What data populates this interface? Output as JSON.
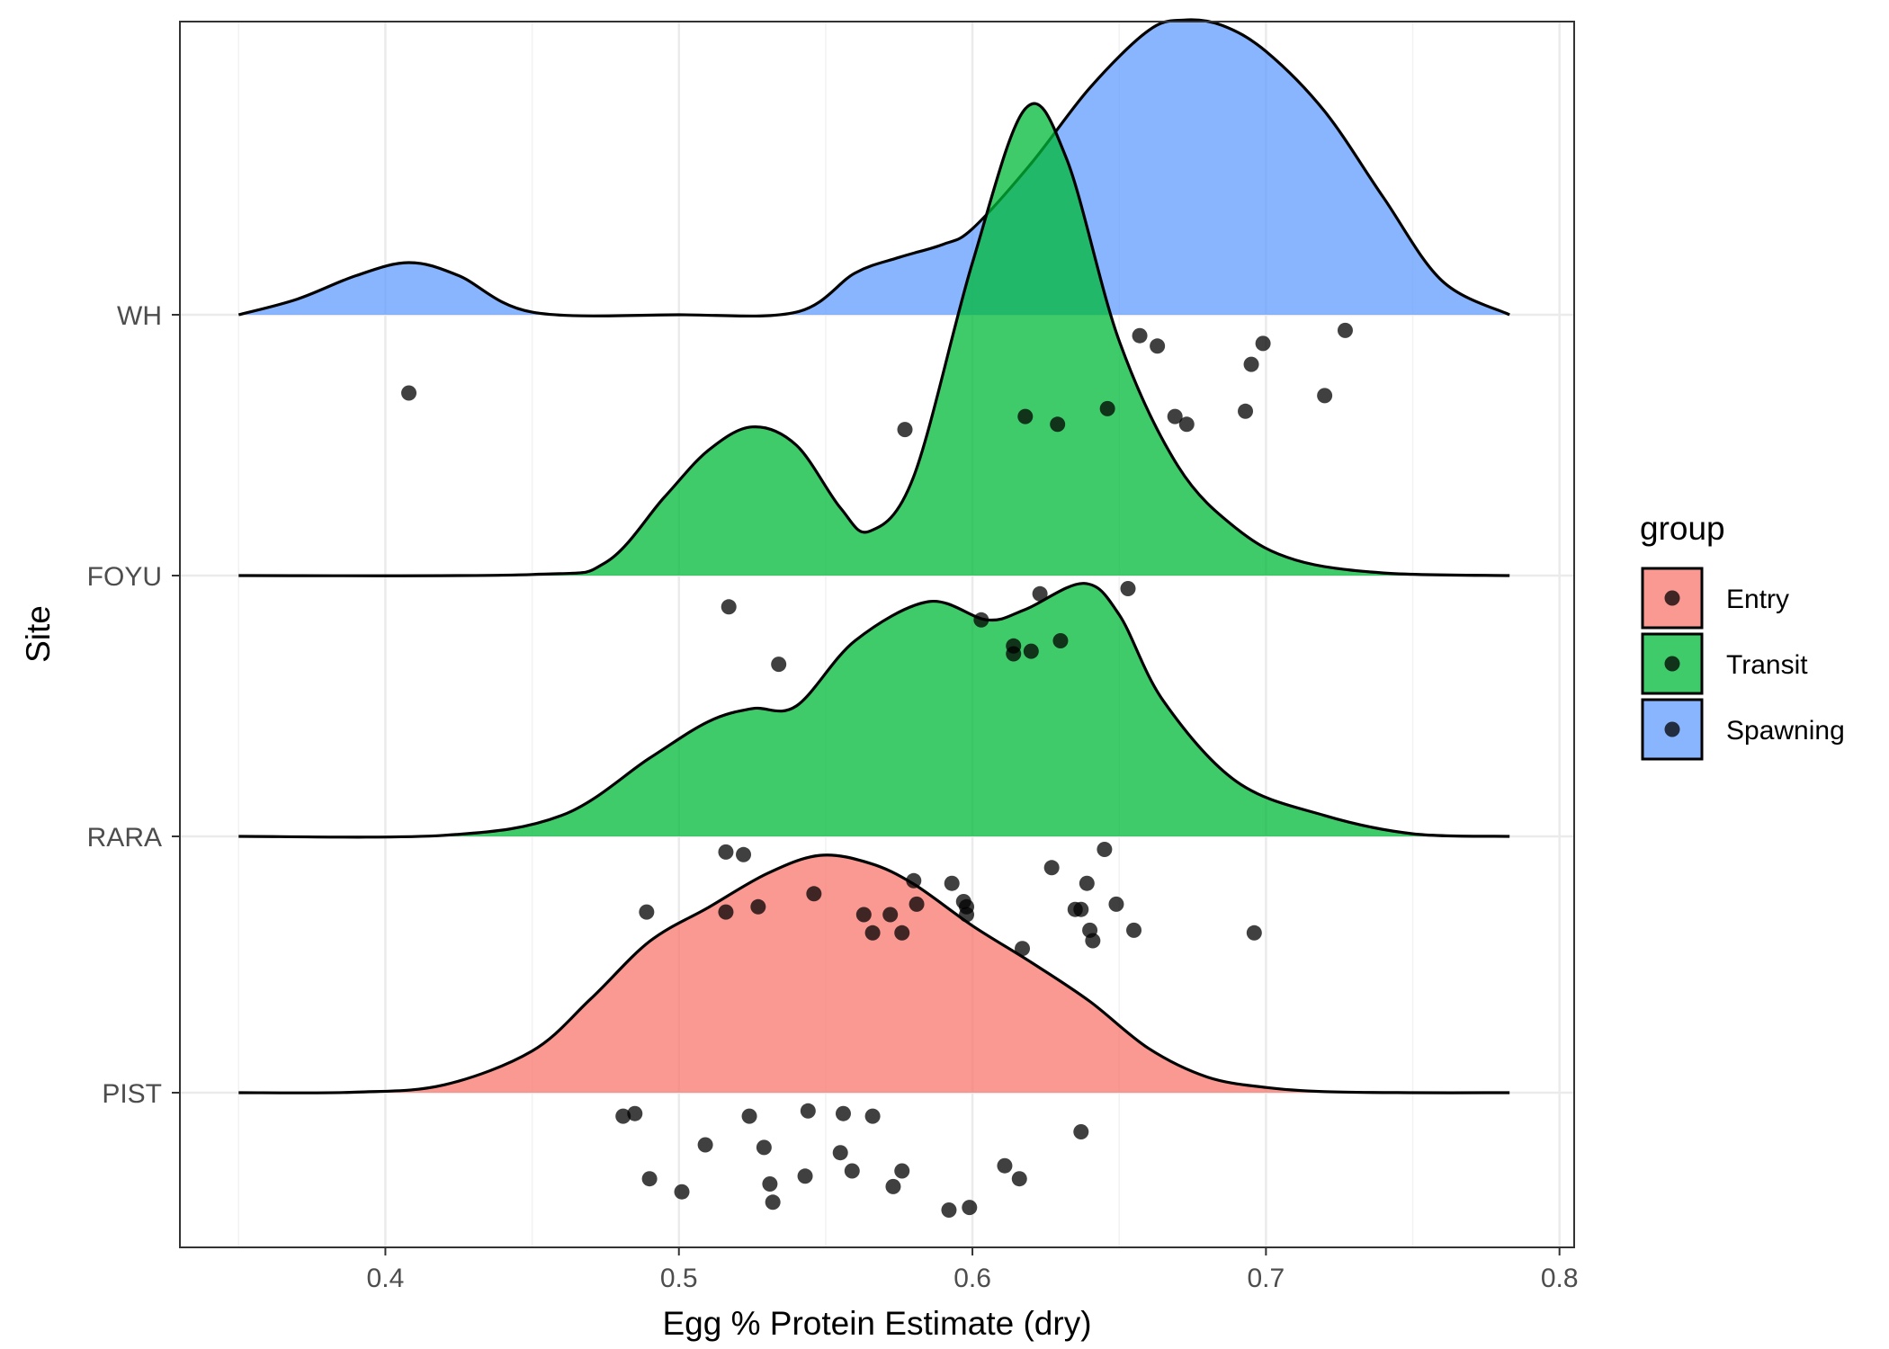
{
  "chart_data": {
    "type": "ridgeline",
    "xlabel": "Egg % Protein Estimate (dry)",
    "ylabel": "Site",
    "xlim": [
      0.33,
      0.805
    ],
    "x_ticks": [
      0.4,
      0.5,
      0.6,
      0.7,
      0.8
    ],
    "x_tick_labels": [
      "0.4",
      "0.5",
      "0.6",
      "0.7",
      "0.8"
    ],
    "categories": [
      "PIST",
      "RARA",
      "FOYU",
      "WH"
    ],
    "grid": true,
    "legend": {
      "title": "group",
      "position": "right",
      "entries": [
        {
          "label": "Entry",
          "color": "#F8766D"
        },
        {
          "label": "Transit",
          "color": "#00BA38"
        },
        {
          "label": "Spawning",
          "color": "#619CFF"
        }
      ]
    },
    "series": [
      {
        "site": "PIST",
        "group": "Entry",
        "color": "#F8766D",
        "density_x": [
          0.35,
          0.39,
          0.42,
          0.45,
          0.47,
          0.49,
          0.51,
          0.53,
          0.548,
          0.565,
          0.58,
          0.6,
          0.62,
          0.64,
          0.66,
          0.68,
          0.7,
          0.72,
          0.75,
          0.783
        ],
        "density_height": [
          0,
          0.002,
          0.03,
          0.16,
          0.36,
          0.58,
          0.71,
          0.84,
          0.91,
          0.88,
          0.8,
          0.64,
          0.5,
          0.35,
          0.17,
          0.06,
          0.02,
          0.004,
          0,
          0
        ],
        "points": [
          {
            "x": 0.481,
            "y": -0.09
          },
          {
            "x": 0.485,
            "y": -0.08
          },
          {
            "x": 0.49,
            "y": -0.33
          },
          {
            "x": 0.501,
            "y": -0.38
          },
          {
            "x": 0.509,
            "y": -0.2
          },
          {
            "x": 0.524,
            "y": -0.09
          },
          {
            "x": 0.529,
            "y": -0.21
          },
          {
            "x": 0.531,
            "y": -0.35
          },
          {
            "x": 0.532,
            "y": -0.42
          },
          {
            "x": 0.543,
            "y": -0.32
          },
          {
            "x": 0.544,
            "y": -0.07
          },
          {
            "x": 0.555,
            "y": -0.23
          },
          {
            "x": 0.556,
            "y": -0.08
          },
          {
            "x": 0.559,
            "y": -0.3
          },
          {
            "x": 0.566,
            "y": -0.09
          },
          {
            "x": 0.573,
            "y": -0.36
          },
          {
            "x": 0.576,
            "y": -0.3
          },
          {
            "x": 0.592,
            "y": -0.45
          },
          {
            "x": 0.599,
            "y": -0.44
          },
          {
            "x": 0.611,
            "y": -0.28
          },
          {
            "x": 0.616,
            "y": -0.33
          },
          {
            "x": 0.637,
            "y": -0.15
          }
        ]
      },
      {
        "site": "RARA",
        "group": "Transit",
        "color": "#00BA38",
        "density_x": [
          0.35,
          0.42,
          0.46,
          0.49,
          0.51,
          0.525,
          0.54,
          0.56,
          0.585,
          0.605,
          0.618,
          0.638,
          0.65,
          0.665,
          0.69,
          0.72,
          0.75,
          0.783
        ],
        "density_height": [
          0,
          0.004,
          0.08,
          0.3,
          0.44,
          0.49,
          0.5,
          0.75,
          0.9,
          0.83,
          0.87,
          0.97,
          0.85,
          0.52,
          0.21,
          0.08,
          0.01,
          0
        ],
        "points": [
          {
            "x": 0.489,
            "y": -0.29
          },
          {
            "x": 0.516,
            "y": -0.06
          },
          {
            "x": 0.516,
            "y": -0.29
          },
          {
            "x": 0.522,
            "y": -0.07
          },
          {
            "x": 0.527,
            "y": -0.27
          },
          {
            "x": 0.546,
            "y": -0.22
          },
          {
            "x": 0.563,
            "y": -0.3
          },
          {
            "x": 0.566,
            "y": -0.37
          },
          {
            "x": 0.572,
            "y": -0.3
          },
          {
            "x": 0.576,
            "y": -0.37
          },
          {
            "x": 0.58,
            "y": -0.17
          },
          {
            "x": 0.581,
            "y": -0.26
          },
          {
            "x": 0.593,
            "y": -0.18
          },
          {
            "x": 0.597,
            "y": -0.25
          },
          {
            "x": 0.598,
            "y": -0.27
          },
          {
            "x": 0.598,
            "y": -0.3
          },
          {
            "x": 0.617,
            "y": -0.43
          },
          {
            "x": 0.627,
            "y": -0.12
          },
          {
            "x": 0.635,
            "y": -0.28
          },
          {
            "x": 0.637,
            "y": -0.28
          },
          {
            "x": 0.639,
            "y": -0.18
          },
          {
            "x": 0.64,
            "y": -0.36
          },
          {
            "x": 0.641,
            "y": -0.4
          },
          {
            "x": 0.645,
            "y": -0.05
          },
          {
            "x": 0.649,
            "y": -0.26
          },
          {
            "x": 0.655,
            "y": -0.36
          },
          {
            "x": 0.696,
            "y": -0.37
          }
        ]
      },
      {
        "site": "FOYU",
        "group": "Transit",
        "color": "#00BA38",
        "density_x": [
          0.35,
          0.45,
          0.475,
          0.495,
          0.51,
          0.525,
          0.54,
          0.555,
          0.565,
          0.58,
          0.6,
          0.618,
          0.632,
          0.65,
          0.67,
          0.69,
          0.71,
          0.74,
          0.783
        ],
        "density_height": [
          0,
          0.004,
          0.05,
          0.3,
          0.48,
          0.57,
          0.5,
          0.26,
          0.17,
          0.38,
          1.2,
          1.79,
          1.6,
          0.9,
          0.42,
          0.18,
          0.06,
          0.01,
          0
        ],
        "points": [
          {
            "x": 0.517,
            "y": -0.12
          },
          {
            "x": 0.534,
            "y": -0.34
          },
          {
            "x": 0.603,
            "y": -0.17
          },
          {
            "x": 0.614,
            "y": -0.27
          },
          {
            "x": 0.614,
            "y": -0.3
          },
          {
            "x": 0.62,
            "y": -0.29
          },
          {
            "x": 0.623,
            "y": -0.07
          },
          {
            "x": 0.63,
            "y": -0.25
          },
          {
            "x": 0.653,
            "y": -0.05
          }
        ]
      },
      {
        "site": "WH",
        "group": "Spawning",
        "color": "#619CFF",
        "density_x": [
          0.35,
          0.37,
          0.39,
          0.408,
          0.425,
          0.45,
          0.5,
          0.54,
          0.56,
          0.575,
          0.59,
          0.6,
          0.62,
          0.64,
          0.66,
          0.672,
          0.685,
          0.7,
          0.72,
          0.74,
          0.76,
          0.783
        ],
        "density_height": [
          0,
          0.06,
          0.15,
          0.2,
          0.15,
          0.01,
          0,
          0.01,
          0.16,
          0.22,
          0.27,
          0.33,
          0.58,
          0.87,
          1.09,
          1.13,
          1.11,
          1.01,
          0.78,
          0.45,
          0.13,
          0
        ],
        "points": [
          {
            "x": 0.408,
            "y": -0.3
          },
          {
            "x": 0.577,
            "y": -0.44
          },
          {
            "x": 0.618,
            "y": -0.39
          },
          {
            "x": 0.629,
            "y": -0.42
          },
          {
            "x": 0.646,
            "y": -0.36
          },
          {
            "x": 0.657,
            "y": -0.08
          },
          {
            "x": 0.663,
            "y": -0.12
          },
          {
            "x": 0.669,
            "y": -0.39
          },
          {
            "x": 0.673,
            "y": -0.42
          },
          {
            "x": 0.693,
            "y": -0.37
          },
          {
            "x": 0.695,
            "y": -0.19
          },
          {
            "x": 0.699,
            "y": -0.11
          },
          {
            "x": 0.72,
            "y": -0.31
          },
          {
            "x": 0.727,
            "y": -0.06
          }
        ]
      }
    ]
  }
}
